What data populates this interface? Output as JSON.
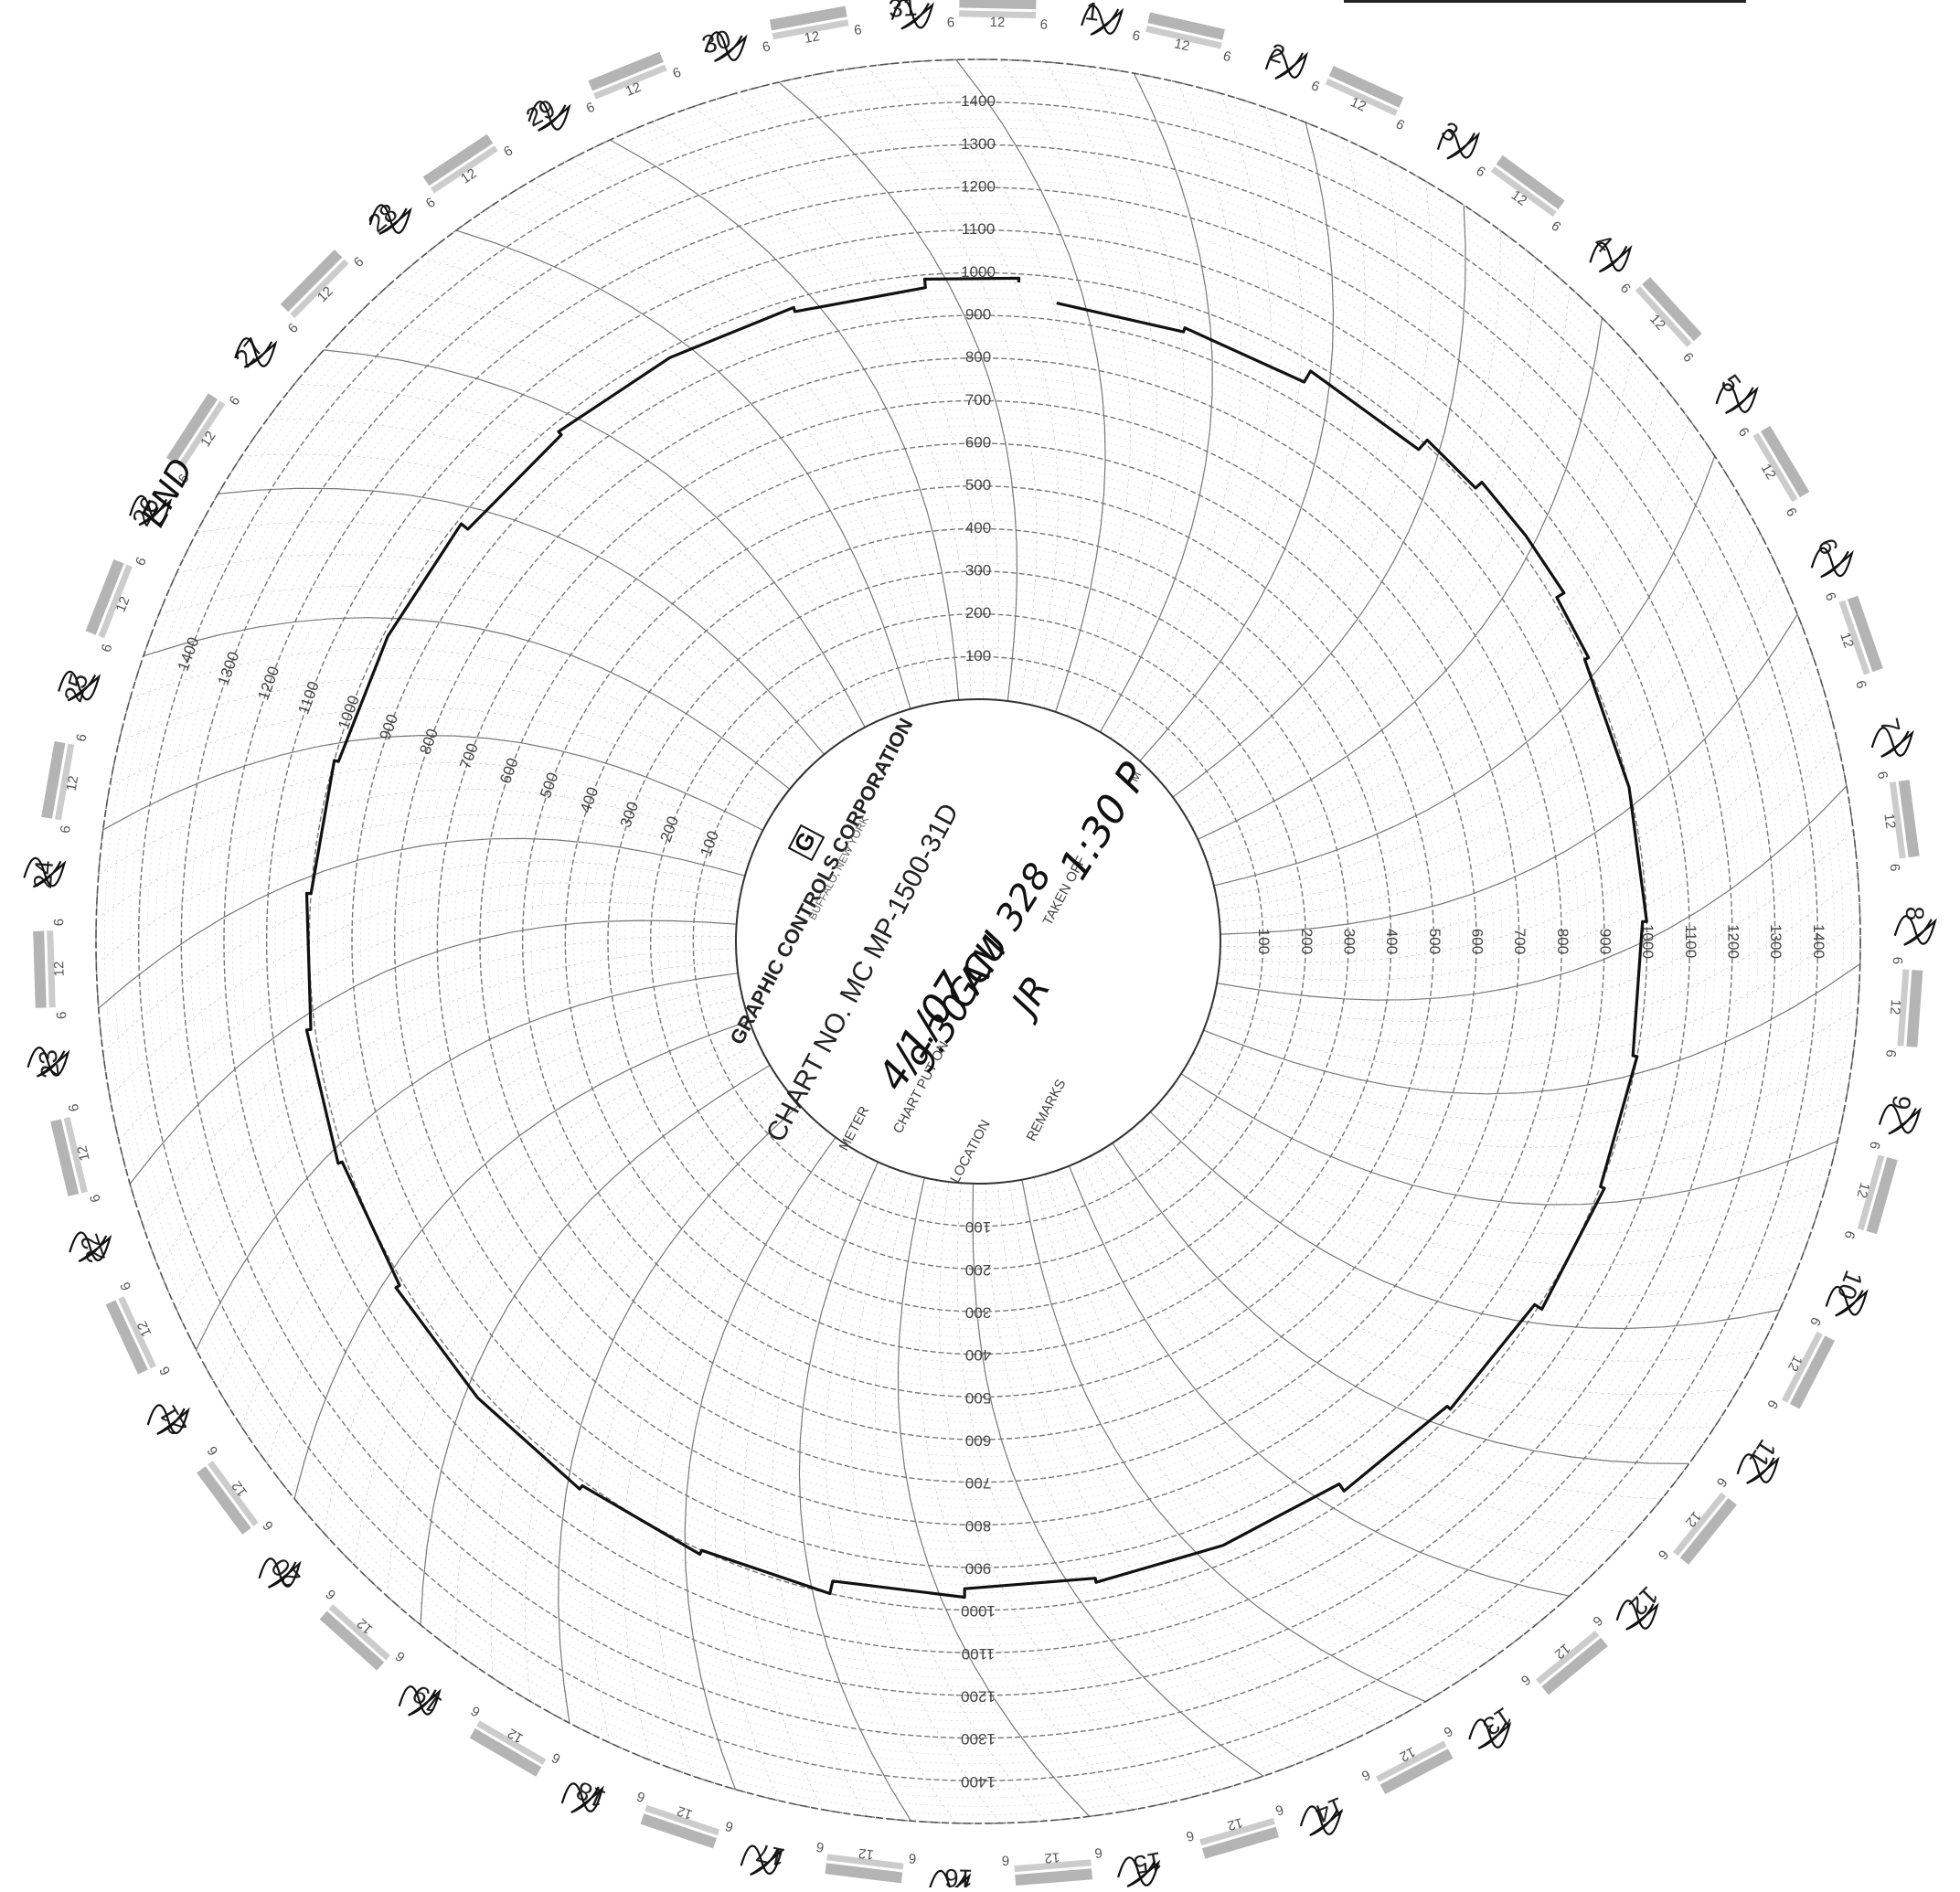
{
  "chart_data": {
    "type": "circular-recorder-chart",
    "chart_no": "CHART NO. MC MP-1500-31D",
    "maker": "GRAPHIC CONTROLS CORPORATION",
    "maker_logo": "G",
    "maker_subline": "BUFFALO, NEW YORK",
    "scale_labels": [
      "100",
      "200",
      "300",
      "400",
      "500",
      "600",
      "700",
      "800",
      "900",
      "1000",
      "1100",
      "1200",
      "1300",
      "1400"
    ],
    "rlim": [
      0,
      1500
    ],
    "day_labels": [
      "1",
      "2",
      "3",
      "4",
      "5",
      "6",
      "7",
      "8",
      "9",
      "10",
      "11",
      "12",
      "13",
      "14",
      "15",
      "16",
      "17",
      "18",
      "19",
      "20",
      "21",
      "22",
      "23",
      "24",
      "25",
      "26",
      "27",
      "28",
      "29",
      "30",
      "31"
    ],
    "hour_labels": [
      "6",
      "12"
    ],
    "fields": {
      "meter": "METER",
      "chart_put_on": "CHART PUT ON",
      "taken_off": "TAKEN OFF",
      "location": "LOCATION",
      "remarks": "REMARKS",
      "m_mark": "M"
    },
    "handwritten": {
      "date": "4/1/07",
      "time_on": "9:30 AM",
      "time_off": "1:30 P",
      "location": "GCU 328",
      "remarks": "JR",
      "end_mark": "END",
      "end_day": "31"
    },
    "trace": {
      "name": "",
      "day": [
        0,
        1,
        2,
        3,
        3.5,
        4,
        4.5,
        5,
        6,
        7,
        8,
        9,
        10,
        11,
        12,
        13,
        14,
        15,
        16,
        17,
        18,
        19,
        20,
        21,
        22,
        23,
        24,
        25,
        26,
        27,
        28,
        29,
        30,
        30.7
      ],
      "value": [
        940,
        950,
        980,
        1010,
        1030,
        1030,
        1010,
        1000,
        1000,
        990,
        1000,
        1010,
        990,
        980,
        960,
        960,
        950,
        970,
        1000,
        1010,
        1020,
        1020,
        1010,
        1020,
        1010,
        1000,
        990,
        990,
        970,
        980,
        980,
        970,
        990,
        980
      ]
    }
  }
}
